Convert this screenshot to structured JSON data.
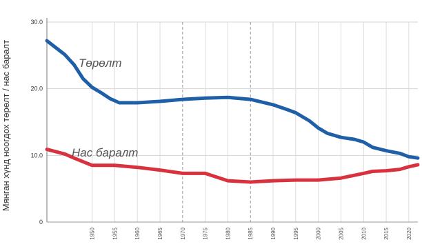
{
  "chart_data": {
    "type": "line",
    "title": "",
    "xlabel": "",
    "ylabel": "Мянган хүнд ноогдох төрөлт / нас баралт",
    "ylim": [
      0,
      30
    ],
    "yticks": [
      "0",
      "10.0",
      "20.0",
      "30.0"
    ],
    "xlim": [
      1940,
      2022
    ],
    "xticks": [
      "1950",
      "1955",
      "1960",
      "1965",
      "1970",
      "1975",
      "1980",
      "1985",
      "1990",
      "1995",
      "2000",
      "2005",
      "2010",
      "2015",
      "2020"
    ],
    "grid": true,
    "legend": "inline labels",
    "series": [
      {
        "name": "Төрөлт",
        "color": "#1f5fa8",
        "x": [
          1940,
          1944,
          1946,
          1948,
          1950,
          1952,
          1954,
          1956,
          1960,
          1965,
          1970,
          1975,
          1980,
          1985,
          1990,
          1993,
          1995,
          1998,
          2000,
          2002,
          2005,
          2008,
          2010,
          2012,
          2015,
          2018,
          2020,
          2022
        ],
        "y": [
          27.2,
          25.1,
          23.6,
          21.5,
          20.2,
          19.4,
          18.5,
          17.9,
          17.9,
          18.1,
          18.4,
          18.6,
          18.7,
          18.4,
          17.6,
          16.9,
          16.4,
          15.2,
          14.1,
          13.3,
          12.7,
          12.4,
          12.0,
          11.2,
          10.7,
          10.3,
          9.8,
          9.6
        ]
      },
      {
        "name": "Нас баралт",
        "color": "#d9323f",
        "x": [
          1940,
          1944,
          1946,
          1950,
          1955,
          1960,
          1965,
          1970,
          1975,
          1980,
          1985,
          1990,
          1995,
          2000,
          2005,
          2010,
          2012,
          2015,
          2018,
          2020,
          2022
        ],
        "y": [
          10.9,
          10.2,
          9.6,
          8.5,
          8.5,
          8.2,
          7.8,
          7.3,
          7.3,
          6.2,
          6.0,
          6.2,
          6.3,
          6.3,
          6.6,
          7.3,
          7.6,
          7.7,
          7.9,
          8.3,
          8.6
        ]
      }
    ]
  }
}
